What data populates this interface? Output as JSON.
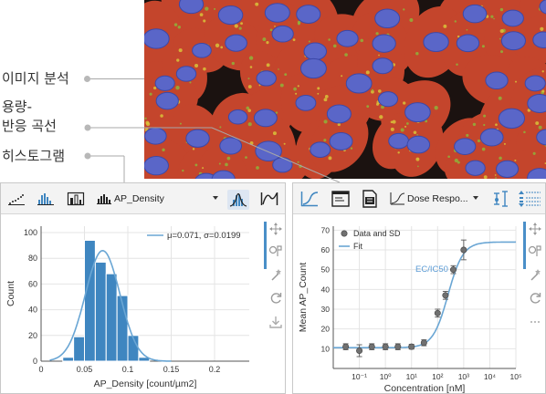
{
  "callouts": [
    {
      "label": "이미지 분석"
    },
    {
      "label": "용량-"
    },
    {
      "label": "반응 곡선"
    },
    {
      "label": "히스토그램"
    }
  ],
  "histogram_panel": {
    "toolbar": {
      "scatter_icon": "scatter-plot-icon",
      "histogram_icon": "histogram-icon",
      "bar_icon": "bar-chart-icon",
      "combo_label": "AP_Density",
      "fit_icon": "distribution-fit-icon",
      "curve_icon": "curve-icon"
    },
    "side_icons": [
      "move-icon",
      "zoom-icon",
      "magic-wand-icon",
      "refresh-icon",
      "download-icon"
    ]
  },
  "dose_panel": {
    "toolbar": {
      "curve_icon": "line-chart-icon",
      "window_icon": "window-icon",
      "report_icon": "report-icon",
      "combo_label": "Dose Respo...",
      "errorbar_icon": "error-bar-icon",
      "list_icon": "list-icon"
    },
    "side_icons": [
      "move-icon",
      "zoom-icon",
      "magic-wand-icon",
      "refresh-icon",
      "more-icon"
    ]
  },
  "chart_data": [
    {
      "type": "bar",
      "xlabel": "AP_Density [count/µm2]",
      "ylabel": "Count",
      "xlim": [
        0,
        0.24
      ],
      "ylim": [
        0,
        105
      ],
      "xticks": [
        "0",
        "0.05",
        "0.1",
        "0.15",
        "0.2"
      ],
      "xtick_values": [
        0,
        0.05,
        0.1,
        0.15,
        0.2
      ],
      "yticks": [
        "0",
        "20",
        "40",
        "60",
        "80",
        "100"
      ],
      "ytick_values": [
        0,
        20,
        40,
        60,
        80,
        100
      ],
      "bin_edges": [
        0.025,
        0.0375,
        0.05,
        0.0625,
        0.075,
        0.0875,
        0.1,
        0.1125,
        0.125
      ],
      "values": [
        3,
        19,
        94,
        77,
        68,
        51,
        20,
        3
      ],
      "fit": {
        "mu": 0.071,
        "sigma": 0.0199,
        "peak": 86
      },
      "legend": {
        "entry": "μ=0.071, σ=0.0199",
        "placement": "top-right"
      },
      "colors": {
        "bar": "#3f86c0",
        "fit": "#6aa6d4"
      },
      "grid": true
    },
    {
      "type": "scatter",
      "xscale": "log",
      "xlabel": "Concentration [nM]",
      "ylabel": "Mean AP_Count",
      "xlim": [
        0.01,
        100000
      ],
      "ylim": [
        0,
        72
      ],
      "xticks": [
        "10⁻¹",
        "10⁰",
        "10¹",
        "10²",
        "10³",
        "10⁴",
        "10⁵"
      ],
      "xtick_values": [
        0.1,
        1,
        10,
        100,
        1000,
        10000,
        100000
      ],
      "yticks": [
        "10",
        "20",
        "30",
        "40",
        "50",
        "60",
        "70"
      ],
      "ytick_values": [
        10,
        20,
        30,
        40,
        50,
        60,
        70
      ],
      "points": [
        {
          "x": 0.03,
          "y": 11,
          "sd": 1.5
        },
        {
          "x": 0.1,
          "y": 9,
          "sd": 3
        },
        {
          "x": 0.3,
          "y": 11,
          "sd": 1.5
        },
        {
          "x": 1,
          "y": 11,
          "sd": 1.5
        },
        {
          "x": 3,
          "y": 11,
          "sd": 1.5
        },
        {
          "x": 10,
          "y": 11,
          "sd": 1.2
        },
        {
          "x": 30,
          "y": 13,
          "sd": 1.5
        },
        {
          "x": 100,
          "y": 28,
          "sd": 2
        },
        {
          "x": 200,
          "y": 37,
          "sd": 2
        },
        {
          "x": 400,
          "y": 50,
          "sd": 2
        },
        {
          "x": 1000,
          "y": 60,
          "sd": 5
        }
      ],
      "fit": {
        "bottom": 10.5,
        "top": 64,
        "ec50": 250,
        "hill": 1.5
      },
      "legend": {
        "entries": [
          "Data and SD",
          "Fit"
        ],
        "placement": "top-left"
      },
      "annotation": "EC/IC50",
      "colors": {
        "points": "#707070",
        "fit": "#6aa6d4",
        "annotation": "#5b9bd5"
      },
      "grid": true
    }
  ]
}
